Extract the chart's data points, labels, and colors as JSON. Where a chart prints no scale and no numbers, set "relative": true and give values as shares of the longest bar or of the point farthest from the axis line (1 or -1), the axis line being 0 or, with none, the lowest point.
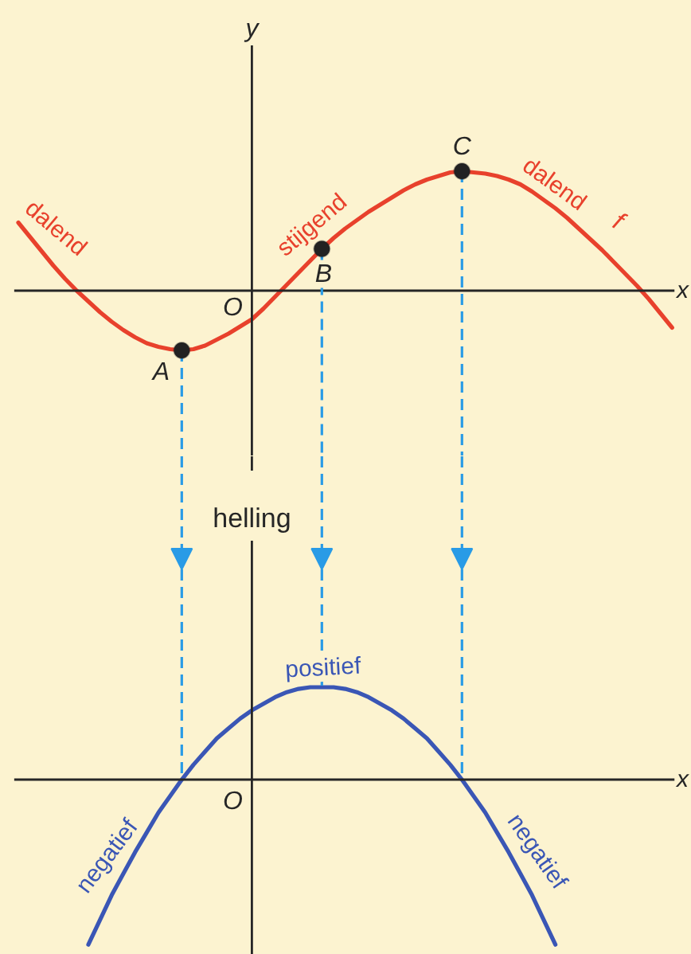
{
  "chart_data": [
    {
      "type": "line",
      "relative": true,
      "xlabel": "x",
      "ylabel": "y",
      "categories": [
        null,
        null,
        null,
        null,
        null,
        null,
        null,
        null,
        null,
        null,
        null,
        null,
        null,
        null,
        null,
        null,
        null,
        null,
        null,
        null,
        null,
        null,
        null,
        null,
        null,
        null,
        null,
        null,
        null,
        null,
        null,
        null,
        null,
        null,
        null,
        null,
        null,
        null,
        null,
        null,
        null,
        null,
        null,
        null,
        null,
        null,
        null,
        null,
        null,
        null,
        null,
        null,
        null,
        null,
        null,
        null,
        null
      ],
      "series": [
        {
          "name": "f",
          "color": "#e8412c",
          "values": [
            0.57,
            0.45,
            0.33,
            0.21,
            0.1,
            0.0,
            -0.09,
            -0.18,
            -0.26,
            -0.33,
            -0.39,
            -0.44,
            -0.47,
            -0.49,
            -0.5,
            -0.49,
            -0.46,
            -0.41,
            -0.36,
            -0.3,
            -0.24,
            -0.15,
            -0.05,
            0.05,
            0.15,
            0.25,
            0.35,
            0.44,
            0.52,
            0.59,
            0.66,
            0.72,
            0.78,
            0.84,
            0.89,
            0.93,
            0.96,
            0.99,
            1.0,
            0.99,
            0.98,
            0.96,
            0.93,
            0.89,
            0.83,
            0.76,
            0.69,
            0.61,
            0.52,
            0.43,
            0.34,
            0.24,
            0.14,
            0.04,
            -0.07,
            -0.19,
            -0.31
          ]
        }
      ],
      "annotations": [
        "dalend",
        "stijgend",
        "dalend",
        "O",
        {
          "text": "A",
          "y": -0.5
        },
        {
          "text": "B",
          "y": 0.35
        },
        {
          "text": "C",
          "y": 1.0
        }
      ]
    },
    {
      "type": "line",
      "relative": true,
      "xlabel": "x",
      "ylabel": "helling",
      "categories": [
        null,
        null,
        null,
        null,
        null,
        null,
        null,
        null,
        null,
        null,
        null,
        null,
        null,
        null,
        null,
        null,
        null,
        null,
        null,
        null,
        null,
        null,
        null,
        null,
        null,
        null,
        null,
        null,
        null,
        null,
        null,
        null,
        null,
        null,
        null,
        null,
        null,
        null,
        null,
        null,
        null,
        null,
        null,
        null,
        null,
        null,
        null,
        null,
        null,
        null,
        null,
        null,
        null,
        null,
        null,
        null,
        null
      ],
      "series": [
        {
          "color": "#3a56b5",
          "values": [
            null,
            null,
            null,
            null,
            null,
            null,
            -1.0,
            -0.85,
            -0.7,
            -0.57,
            -0.44,
            -0.32,
            -0.2,
            -0.1,
            0,
            0.09,
            0.17,
            0.25,
            0.31,
            0.37,
            0.42,
            0.46,
            0.5,
            0.53,
            0.55,
            0.56,
            0.56,
            0.56,
            0.55,
            0.53,
            0.5,
            0.46,
            0.42,
            0.37,
            0.31,
            0.25,
            0.17,
            0.09,
            0,
            -0.1,
            -0.2,
            -0.32,
            -0.44,
            -0.57,
            -0.7,
            -0.85,
            -1.0,
            null,
            null,
            null,
            null,
            null,
            null,
            null,
            null,
            null,
            null
          ]
        }
      ],
      "annotations": [
        "positief",
        "negatief",
        "negatief",
        "O"
      ]
    }
  ]
}
